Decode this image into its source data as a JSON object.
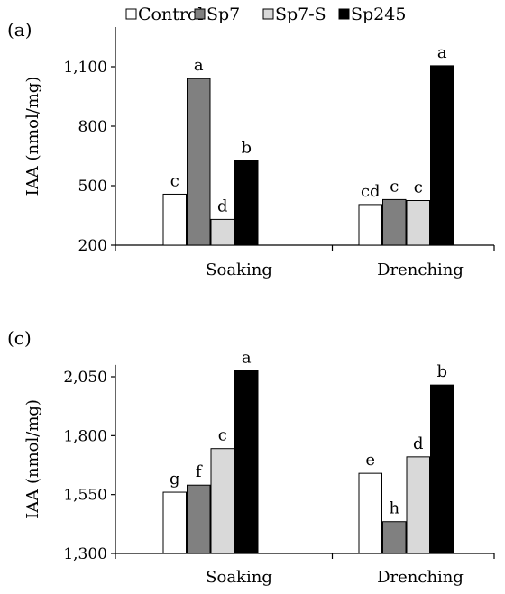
{
  "legend": {
    "series": [
      {
        "name": "Control",
        "color": "#ffffff"
      },
      {
        "name": "Sp7",
        "color": "#808080"
      },
      {
        "name": "Sp7-S",
        "color": "#d9d9d9"
      },
      {
        "name": "Sp245",
        "color": "#000000"
      }
    ]
  },
  "chart_data": [
    {
      "type": "bar",
      "panel_label": "(a)",
      "ylabel": "IAA (nmol/mg)",
      "ylim": [
        200,
        1300
      ],
      "yticks": [
        200,
        500,
        800,
        1100
      ],
      "ytick_labels": [
        "200",
        "500",
        "800",
        "1,100"
      ],
      "categories": [
        "Soaking",
        "Drenching"
      ],
      "series": [
        {
          "name": "Control",
          "values": [
            457,
            405
          ],
          "labels": [
            "c",
            "cd"
          ]
        },
        {
          "name": "Sp7",
          "values": [
            1040,
            430
          ],
          "labels": [
            "a",
            "c"
          ]
        },
        {
          "name": "Sp7-S",
          "values": [
            330,
            425
          ],
          "labels": [
            "d",
            "c"
          ]
        },
        {
          "name": "Sp245",
          "values": [
            625,
            1105
          ],
          "labels": [
            "b",
            "a"
          ]
        }
      ],
      "grid": false,
      "legend_position": "top"
    },
    {
      "type": "bar",
      "panel_label": "(c)",
      "ylabel": "IAA (nmol/mg)",
      "ylim": [
        1300,
        2100
      ],
      "yticks": [
        1300,
        1550,
        1800,
        2050
      ],
      "ytick_labels": [
        "1,300",
        "1,550",
        "1,800",
        "2,050"
      ],
      "categories": [
        "Soaking",
        "Drenching"
      ],
      "series": [
        {
          "name": "Control",
          "values": [
            1560,
            1640
          ],
          "labels": [
            "g",
            "e"
          ]
        },
        {
          "name": "Sp7",
          "values": [
            1590,
            1435
          ],
          "labels": [
            "f",
            "h"
          ]
        },
        {
          "name": "Sp7-S",
          "values": [
            1745,
            1710
          ],
          "labels": [
            "c",
            "d"
          ]
        },
        {
          "name": "Sp245",
          "values": [
            2075,
            2015
          ],
          "labels": [
            "a",
            "b"
          ]
        }
      ],
      "grid": false
    }
  ]
}
